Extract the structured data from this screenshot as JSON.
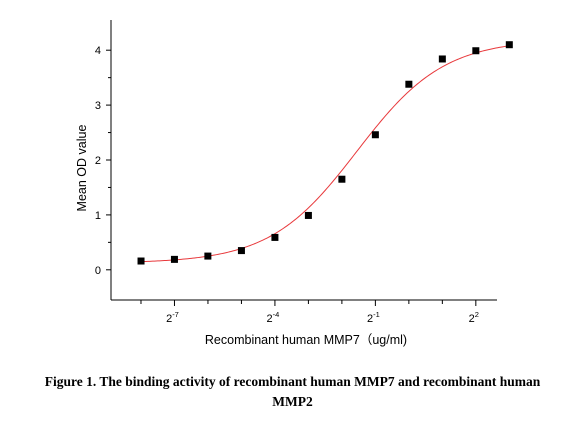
{
  "chart_data": {
    "type": "scatter",
    "xlabel": "Recombinant human MMP7（ug/ml)",
    "ylabel": "Mean OD value",
    "x_scale": "log2",
    "xlim": [
      0.0021,
      6.2
    ],
    "ylim": [
      -0.55,
      4.55
    ],
    "x_ticks": [
      {
        "base": "2",
        "exp": "-7",
        "value": 0.0078125
      },
      {
        "base": "2",
        "exp": "-4",
        "value": 0.0625
      },
      {
        "base": "2",
        "exp": "-1",
        "value": 0.5
      },
      {
        "base": "2",
        "exp": "2",
        "value": 4
      }
    ],
    "y_ticks": [
      0,
      1,
      2,
      3,
      4
    ],
    "grid": false,
    "series": [
      {
        "marker": "square",
        "color": "#000000",
        "fit_color": "#e8393c",
        "x": [
          0.00391,
          0.00781,
          0.0156,
          0.03125,
          0.0625,
          0.125,
          0.25,
          0.5,
          1.0,
          2.0,
          4.0,
          8.0
        ],
        "y": [
          0.16,
          0.19,
          0.25,
          0.35,
          0.59,
          0.99,
          1.65,
          2.46,
          3.38,
          3.84,
          3.99,
          4.1
        ]
      }
    ]
  },
  "caption": {
    "line1": "Figure 1. The binding activity of recombinant human MMP7 and recombinant human",
    "line2": "MMP2"
  }
}
